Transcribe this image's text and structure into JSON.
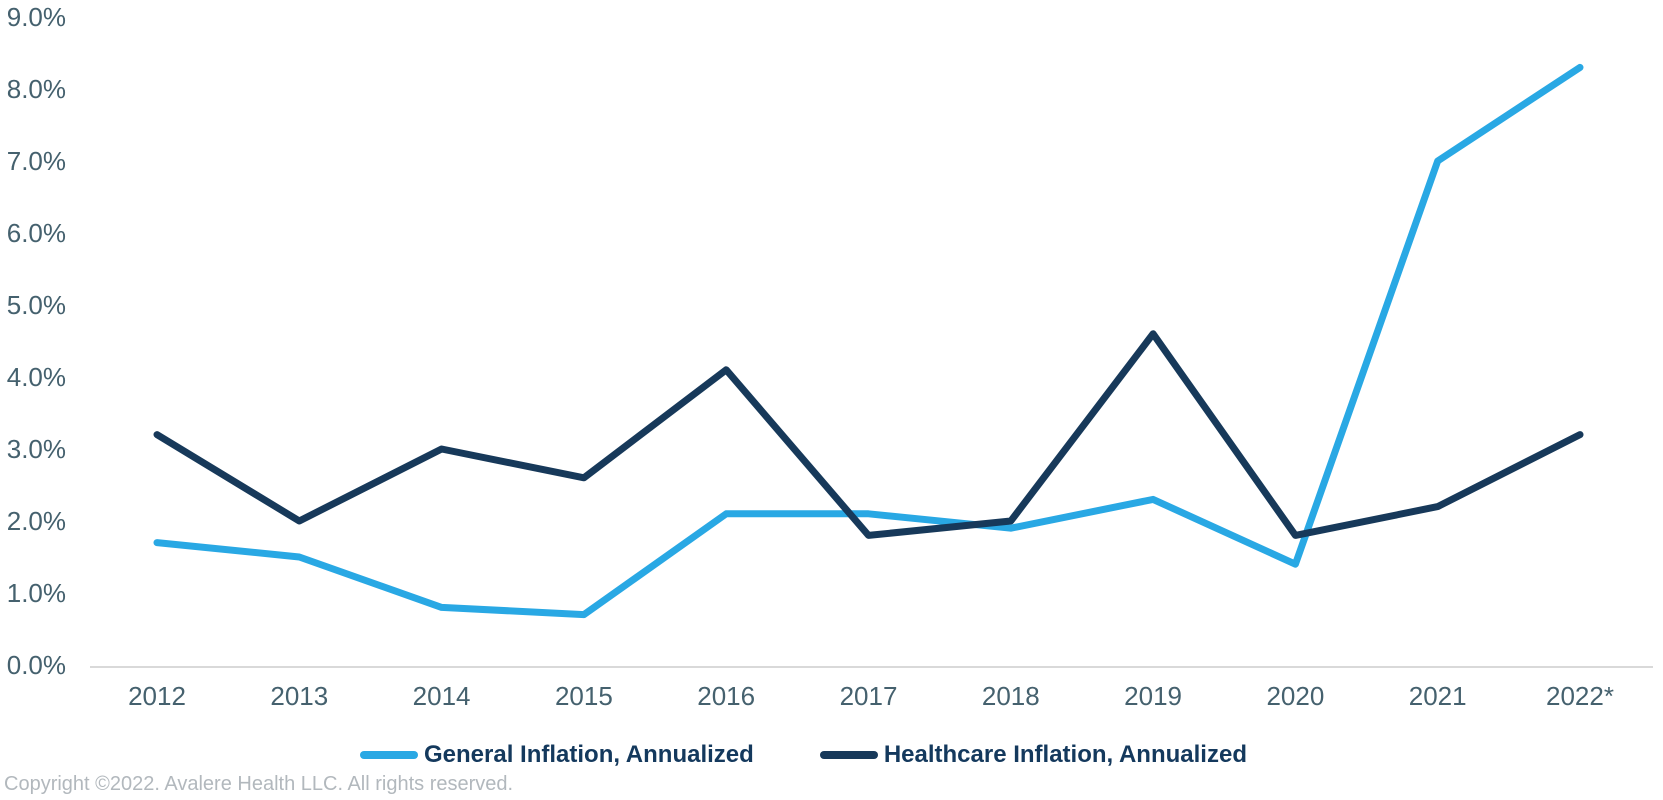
{
  "chart_data": {
    "type": "line",
    "title": "",
    "xlabel": "",
    "ylabel": "",
    "categories": [
      "2012",
      "2013",
      "2014",
      "2015",
      "2016",
      "2017",
      "2018",
      "2019",
      "2020",
      "2021",
      "2022*"
    ],
    "series": [
      {
        "name": "General Inflation, Annualized",
        "color": "#29A8E4",
        "values": [
          1.7,
          1.5,
          0.8,
          0.7,
          2.1,
          2.1,
          1.9,
          2.3,
          1.4,
          7.0,
          8.3
        ]
      },
      {
        "name": "Healthcare Inflation, Annualized",
        "color": "#17395A",
        "values": [
          3.2,
          2.0,
          3.0,
          2.6,
          4.1,
          1.8,
          2.0,
          4.6,
          1.8,
          2.2,
          3.2
        ]
      }
    ],
    "ylim": [
      0,
      9
    ],
    "ytick_labels": [
      "0.0%",
      "1.0%",
      "2.0%",
      "3.0%",
      "4.0%",
      "5.0%",
      "6.0%",
      "7.0%",
      "8.0%",
      "9.0%"
    ],
    "grid": false,
    "axis_line_color": "#D9D9D9",
    "axis_label_color": "#45616E",
    "legend_position": "bottom",
    "legend_text_color": "#14395D"
  },
  "footer": {
    "copyright": "Copyright ©2022. Avalere Health LLC. All rights reserved."
  }
}
